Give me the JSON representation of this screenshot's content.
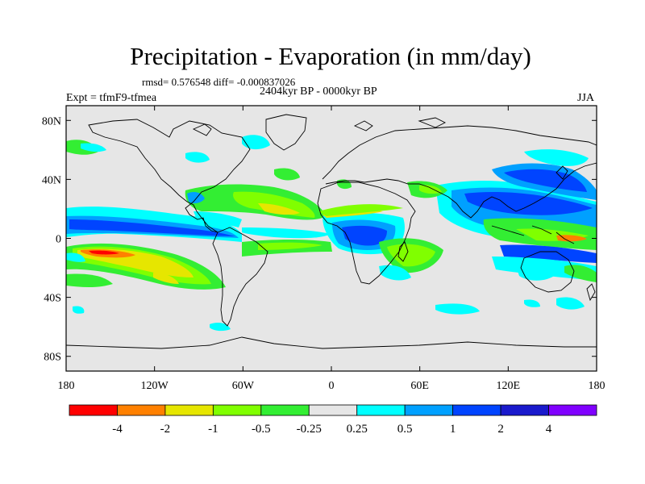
{
  "title": "Precipitation - Evaporation (in mm/day)",
  "stats": "rmsd= 0.576548 diff= -0.000837026",
  "period": "2404kyr BP - 0000kyr BP",
  "experiment": "Expt = tfmF9-tfmea",
  "season": "JJA",
  "axes": {
    "x_ticks": [
      "180",
      "120W",
      "60W",
      "0",
      "60E",
      "120E",
      "180"
    ],
    "y_ticks": [
      "80N",
      "40N",
      "0",
      "40S",
      "80S"
    ]
  },
  "colorbar": {
    "labels": [
      "-4",
      "-2",
      "-1",
      "-0.5",
      "-0.25",
      "0.25",
      "0.5",
      "1",
      "2",
      "4"
    ],
    "colors": [
      "#ff0000",
      "#ff8000",
      "#e6e600",
      "#80ff00",
      "#33ee33",
      "#e6e6e6",
      "#00ffff",
      "#00a0ff",
      "#0044ff",
      "#1a1acc",
      "#8000ff"
    ]
  },
  "palette": {
    "land_fill": "#e6e6e6",
    "coastline": "#000000"
  }
}
